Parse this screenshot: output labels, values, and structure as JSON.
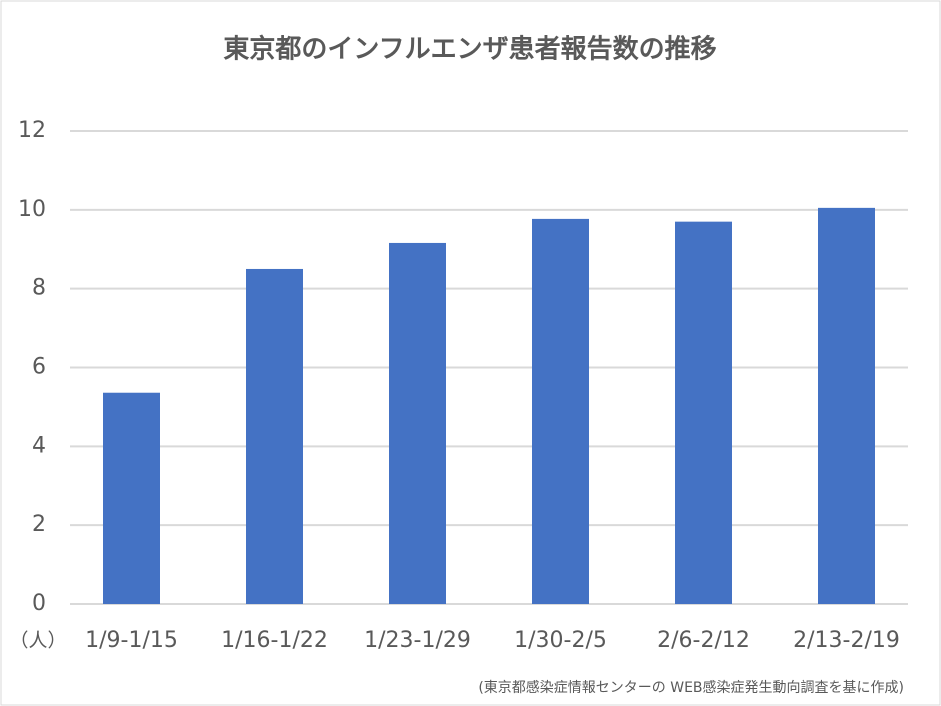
{
  "chart_data": {
    "type": "bar",
    "title": "東京都のインフルエンザ患者報告数の推移",
    "y_unit_label": "（人）",
    "source_note": "(東京都感染症情報センターの WEB感染症発生動向調査を基に作成)",
    "categories": [
      "1/9-1/15",
      "1/16-1/22",
      "1/23-1/29",
      "1/30-2/5",
      "2/6-2/12",
      "2/13-2/19"
    ],
    "values": [
      5.36,
      8.5,
      9.16,
      9.77,
      9.7,
      10.05
    ],
    "color": "#4472c4",
    "ylim": [
      0,
      12
    ],
    "yticks": [
      0,
      2,
      4,
      6,
      8,
      10,
      12
    ],
    "grid": true
  }
}
